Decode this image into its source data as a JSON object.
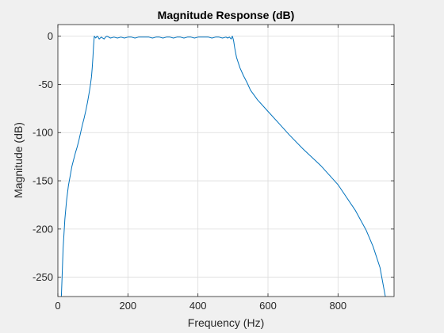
{
  "chart_data": {
    "type": "line",
    "title": "Magnitude Response (dB)",
    "xlabel": "Frequency (Hz)",
    "ylabel": "Magnitude (dB)",
    "xlim": [
      0,
      960
    ],
    "ylim": [
      -270,
      12
    ],
    "xticks": [
      0,
      200,
      400,
      600,
      800
    ],
    "yticks": [
      0,
      -50,
      -100,
      -150,
      -200,
      -250
    ],
    "xtick_labels": [
      "0",
      "200",
      "400",
      "600",
      "800"
    ],
    "ytick_labels": [
      "0",
      "-50",
      "-100",
      "-150",
      "-200",
      "-250"
    ],
    "grid": true,
    "line_color": "#0072bd",
    "series": [
      {
        "x": [
          10,
          12,
          15,
          20,
          25,
          30,
          35,
          40,
          45,
          50,
          55,
          60,
          65,
          70,
          75,
          80,
          85,
          90,
          93,
          96,
          98,
          100,
          102,
          104,
          106,
          108,
          110,
          112,
          115,
          118,
          121,
          124,
          128,
          132,
          136,
          140,
          150,
          160,
          170,
          180,
          190,
          200,
          210,
          220,
          230,
          240,
          250,
          260,
          270,
          280,
          290,
          300,
          310,
          320,
          330,
          340,
          350,
          360,
          370,
          380,
          390,
          400,
          410,
          420,
          430,
          440,
          450,
          460,
          470,
          480,
          485,
          490,
          495,
          498,
          500,
          502,
          505,
          510,
          520,
          530,
          540,
          550,
          570,
          600,
          630,
          660,
          700,
          750,
          800,
          850,
          880,
          900,
          920,
          935
        ],
        "y": [
          -270,
          -250,
          -220,
          -190,
          -170,
          -155,
          -145,
          -135,
          -128,
          -121,
          -115,
          -108,
          -100,
          -92,
          -85,
          -77,
          -68,
          -57,
          -50,
          -42,
          -33,
          -22,
          -10,
          0,
          -1,
          -2,
          -1,
          0,
          -1,
          -3,
          -2,
          -1,
          -2,
          -3,
          -1,
          0,
          -2,
          -1,
          -2,
          -1,
          -2,
          -1,
          -1,
          -2,
          -1,
          -1,
          -1,
          -1,
          -2,
          -1,
          -1,
          -2,
          -1,
          -1,
          -2,
          -1,
          -1,
          -2,
          -1,
          -1,
          -2,
          -1,
          -1,
          -1,
          -1,
          -2,
          -1,
          -1,
          -2,
          -1,
          -2,
          -1,
          -3,
          0,
          -2,
          -5,
          -12,
          -22,
          -33,
          -41,
          -48,
          -56,
          -66,
          -78,
          -90,
          -102,
          -117,
          -134,
          -154,
          -181,
          -201,
          -218,
          -240,
          -270
        ]
      }
    ]
  }
}
